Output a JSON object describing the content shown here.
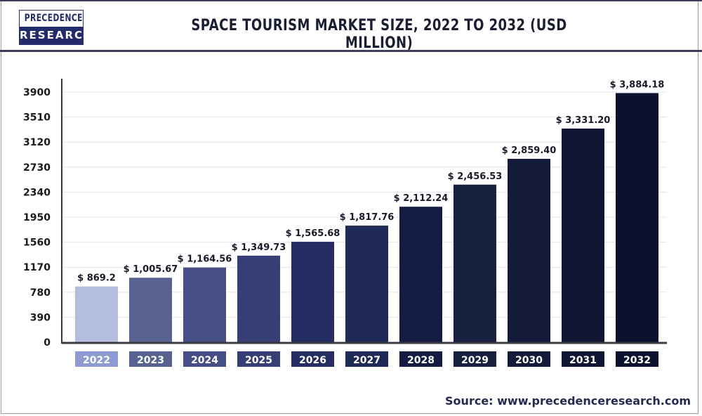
{
  "logo": {
    "line1": "PRECEDENCE",
    "line2": "RESEARCH"
  },
  "source": "Source: www.precedenceresearch.com",
  "chart_data": {
    "type": "bar",
    "title": "SPACE TOURISM MARKET SIZE, 2022 TO 2032 (USD MILLION)",
    "xlabel": "",
    "ylabel": "",
    "categories": [
      "2022",
      "2023",
      "2024",
      "2025",
      "2026",
      "2027",
      "2028",
      "2029",
      "2030",
      "2031",
      "2032"
    ],
    "values": [
      869.2,
      1005.67,
      1164.56,
      1349.73,
      1565.68,
      1817.76,
      2112.24,
      2456.53,
      2859.4,
      3331.2,
      3884.18
    ],
    "data_labels": [
      "$ 869.2",
      "$ 1,005.67",
      "$ 1,164.56",
      "$ 1,349.73",
      "$ 1,565.68",
      "$ 1,817.76",
      "$ 2,112.24",
      "$ 2,456.53",
      "$ 2,859.40",
      "$ 3,331.20",
      "$ 3,884.18"
    ],
    "yticks": [
      0,
      390,
      780,
      1170,
      1560,
      1950,
      2340,
      2730,
      3120,
      3510,
      3900
    ],
    "ylim": [
      0,
      3900
    ],
    "grid": true,
    "legend": "none",
    "bar_colors": [
      "#b4bce0",
      "#58628f",
      "#464f85",
      "#363e75",
      "#262d63",
      "#1f2a56",
      "#141c44",
      "#17203f",
      "#131a3a",
      "#0f1533",
      "#0b112e"
    ],
    "label_box_colors": [
      "#8e9ad0",
      "#58628f",
      "#464f85",
      "#363e75",
      "#262d63",
      "#1f2a56",
      "#141c44",
      "#17203f",
      "#131a3a",
      "#0f1533",
      "#0b112e"
    ]
  }
}
